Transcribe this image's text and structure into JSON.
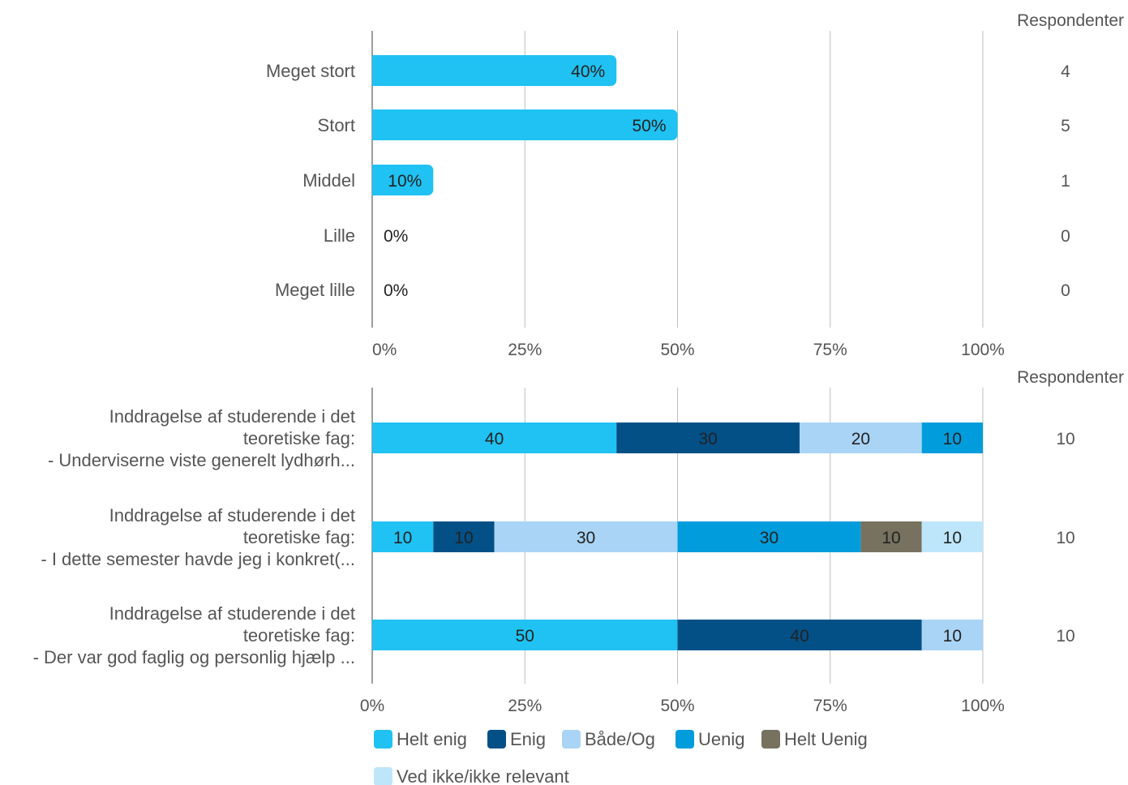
{
  "colors": {
    "bar": "#1FC2F2",
    "grid": "#BDBDBD",
    "axis": "#9E9E9E",
    "helt_enig": "#1FC2F2",
    "enig": "#035087",
    "baade_og": "#A9D4F5",
    "uenig": "#019CDC",
    "helt_uenig": "#76725F",
    "ved_ikke": "#BDE6FA"
  },
  "chart_data": [
    {
      "type": "bar",
      "orientation": "horizontal",
      "categories": [
        "Meget stort",
        "Stort",
        "Middel",
        "Lille",
        "Meget lille"
      ],
      "values": [
        40,
        50,
        10,
        0,
        0
      ],
      "value_labels": [
        "40%",
        "50%",
        "10%",
        "0%",
        "0%"
      ],
      "respondents_header": "Respondenter",
      "respondents": [
        "4",
        "5",
        "1",
        "0",
        "0"
      ],
      "xlim": [
        0,
        100
      ],
      "xticks": [
        "0%",
        "25%",
        "50%",
        "75%",
        "100%"
      ],
      "grid": true
    },
    {
      "type": "bar",
      "orientation": "horizontal",
      "stacked": true,
      "categories": [
        [
          "Inddragelse af studerende i det",
          "teoretiske fag:",
          "- Underviserne viste generelt lydhørh..."
        ],
        [
          "Inddragelse af studerende i det",
          "teoretiske fag:",
          "- I dette semester havde jeg i konkret(..."
        ],
        [
          "Inddragelse af studerende i det",
          "teoretiske fag:",
          "- Der var god faglig og personlig hjælp ..."
        ]
      ],
      "series": [
        {
          "name": "Helt enig",
          "color": "#1FC2F2",
          "values": [
            40,
            10,
            50
          ]
        },
        {
          "name": "Enig",
          "color": "#035087",
          "values": [
            30,
            10,
            40
          ]
        },
        {
          "name": "Både/Og",
          "color": "#A9D4F5",
          "values": [
            20,
            30,
            10
          ]
        },
        {
          "name": "Uenig",
          "color": "#019CDC",
          "values": [
            10,
            30,
            0
          ]
        },
        {
          "name": "Helt Uenig",
          "color": "#76725F",
          "values": [
            0,
            10,
            0
          ]
        },
        {
          "name": "Ved ikke/ikke relevant",
          "color": "#BDE6FA",
          "values": [
            0,
            10,
            0
          ]
        }
      ],
      "respondents_header": "Respondenter",
      "respondents": [
        "10",
        "10",
        "10"
      ],
      "xlim": [
        0,
        100
      ],
      "xticks": [
        "0%",
        "25%",
        "50%",
        "75%",
        "100%"
      ],
      "grid": true,
      "legend": "bottom"
    }
  ]
}
